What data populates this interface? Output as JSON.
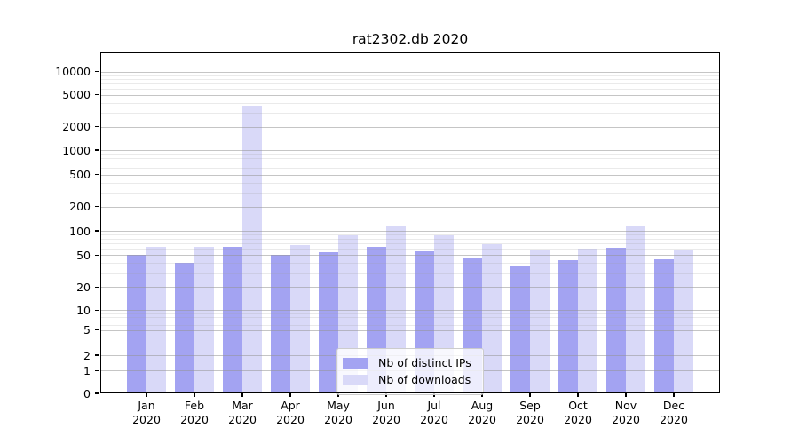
{
  "figure": {
    "title": "rat2302.db 2020"
  },
  "legend": {
    "items": [
      {
        "label": "Nb of distinct IPs",
        "color": "#a3a3f2"
      },
      {
        "label": "Nb of downloads",
        "color": "#d9d9f8"
      }
    ]
  },
  "y_axis": {
    "tick_labels": [
      "0",
      "1",
      "2",
      "5",
      "10",
      "20",
      "50",
      "100",
      "200",
      "500",
      "1000",
      "2000",
      "5000",
      "10000"
    ]
  },
  "x_axis": {
    "tick_labels": [
      "Jan 2020",
      "Feb 2020",
      "Mar 2020",
      "Apr 2020",
      "May 2020",
      "Jun 2020",
      "Jul 2020",
      "Aug 2020",
      "Sep 2020",
      "Oct 2020",
      "Nov 2020",
      "Dec 2020"
    ]
  },
  "chart_data": {
    "type": "bar",
    "title": "rat2302.db 2020",
    "categories": [
      "Jan 2020",
      "Feb 2020",
      "Mar 2020",
      "Apr 2020",
      "May 2020",
      "Jun 2020",
      "Jul 2020",
      "Aug 2020",
      "Sep 2020",
      "Oct 2020",
      "Nov 2020",
      "Dec 2020"
    ],
    "series": [
      {
        "name": "Nb of distinct IPs",
        "color": "#a3a3f2",
        "values": [
          50,
          40,
          64,
          51,
          54,
          63,
          56,
          46,
          36,
          43,
          62,
          44
        ]
      },
      {
        "name": "Nb of downloads",
        "color": "#d9d9f8",
        "values": [
          63,
          63,
          3650,
          66,
          88,
          114,
          89,
          68,
          57,
          61,
          113,
          59
        ]
      }
    ],
    "y_scale": "symlog (0,1,2,5 ... 10000)",
    "y_tick_values": [
      0,
      1,
      2,
      5,
      10,
      20,
      50,
      100,
      200,
      500,
      1000,
      2000,
      5000,
      10000
    ],
    "ylim": [
      0,
      17000
    ],
    "xlabel": "",
    "ylabel": "",
    "grid": "horizontal major + minor gridlines, drawn over bars",
    "legend_position": "inside, lower center-right"
  }
}
